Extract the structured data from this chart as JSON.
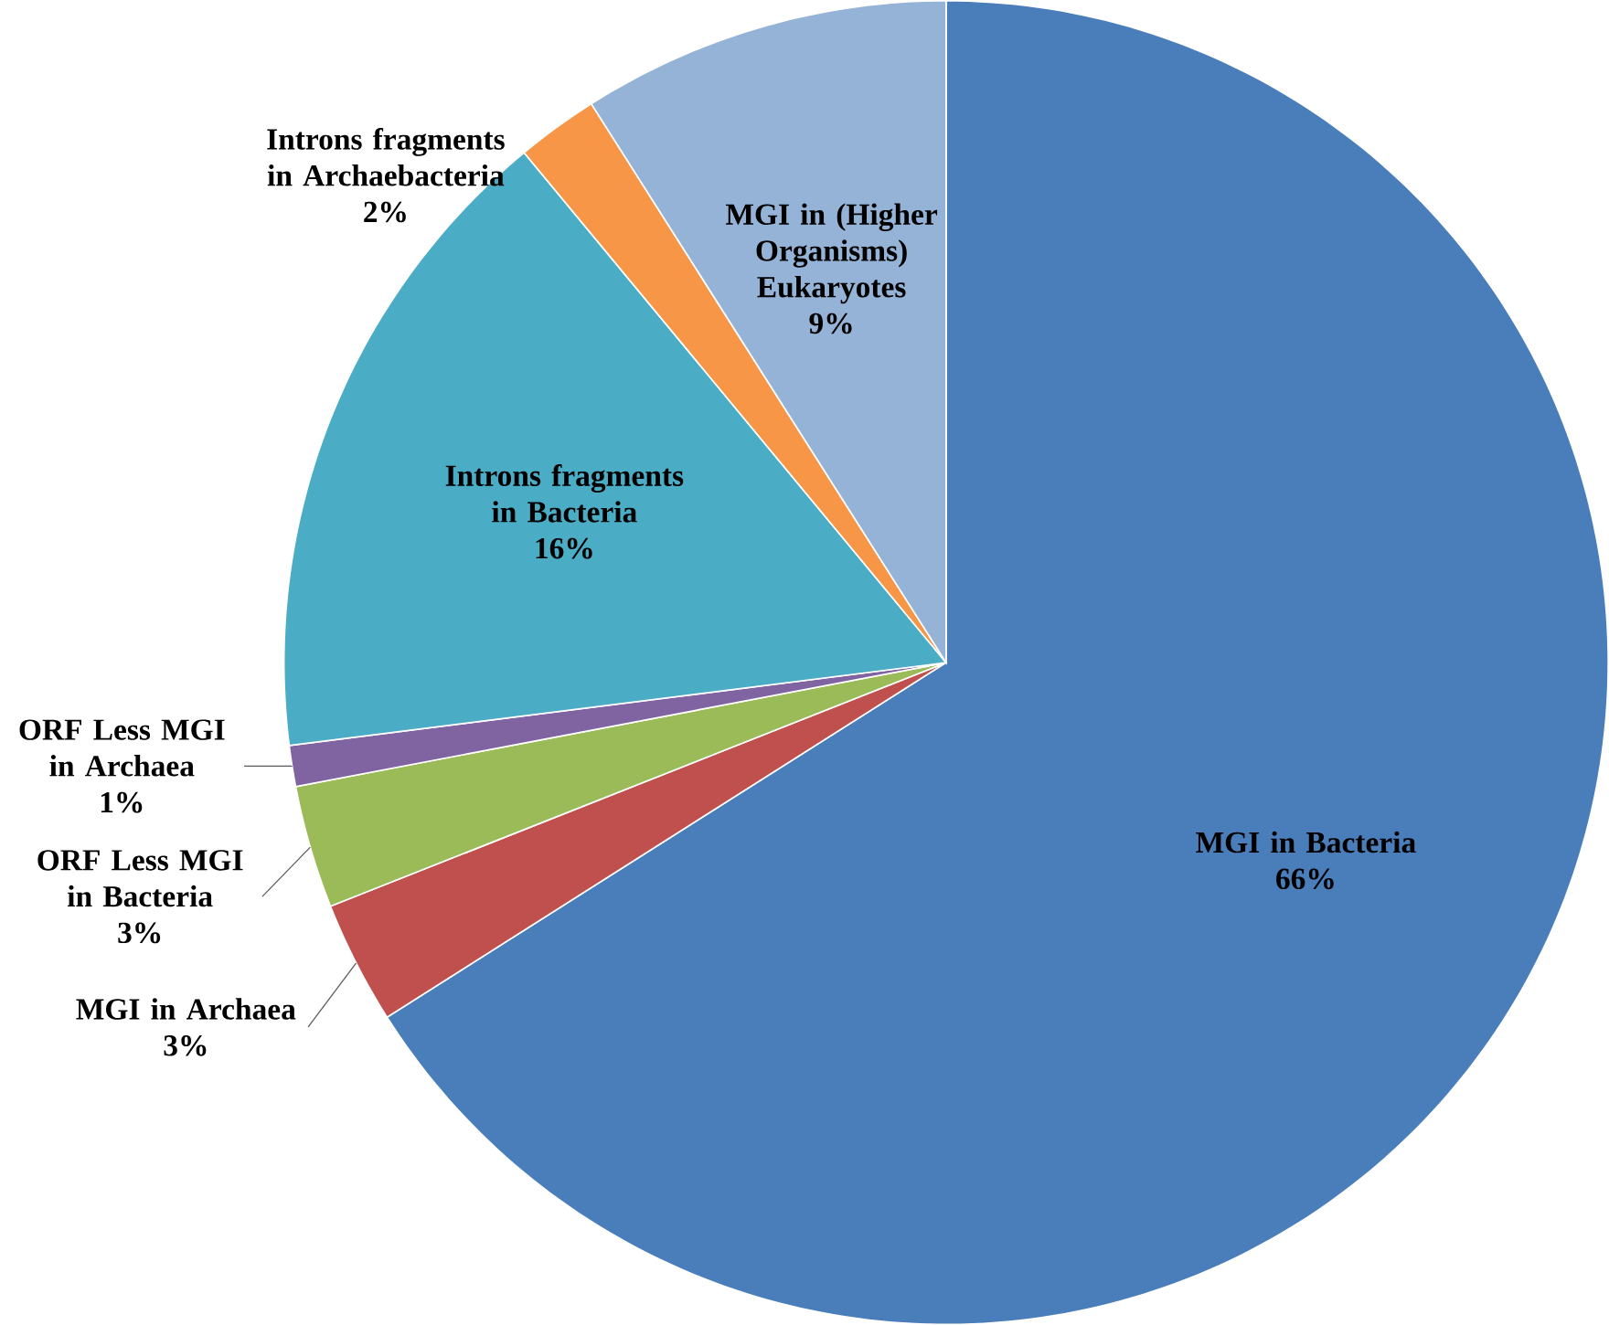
{
  "chart_data": {
    "type": "pie",
    "categories": [
      "MGI in Bacteria",
      "MGI in Archaea",
      "ORF Less MGI in Bacteria",
      "ORF Less MGI in Archaea",
      "Introns fragments in Bacteria",
      "Introns fragments in Archaebacteria",
      "MGI in (Higher Organisms) Eukaryotes"
    ],
    "values": [
      66,
      3,
      3,
      1,
      16,
      2,
      9
    ],
    "value_labels": [
      "66%",
      "3%",
      "3%",
      "1%",
      "16%",
      "2%",
      "9%"
    ],
    "colors": [
      "#4a7ebb",
      "#c0504d",
      "#9bbb59",
      "#8064a2",
      "#4bacc6",
      "#f79646",
      "#95b3d7"
    ]
  }
}
